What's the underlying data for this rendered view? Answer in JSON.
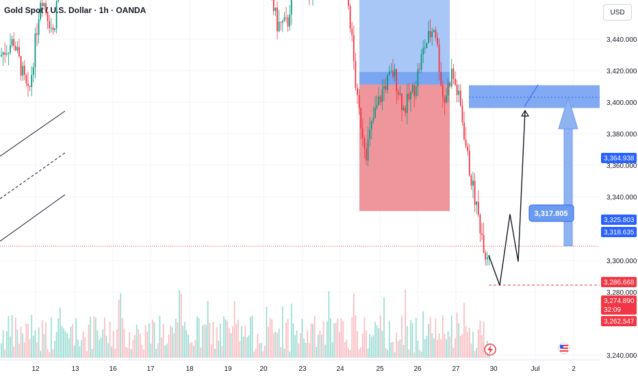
{
  "header": {
    "symbol_title": "Gold Spot / U.S. Dollar · 1h · OANDA",
    "currency": "USD"
  },
  "colors": {
    "up": "#089981",
    "down": "#f23645",
    "accent_blue": "#2962ff",
    "zone_blue": "#90b4f3",
    "zone_red": "#ef9a9a",
    "grid": "#f0f3fa",
    "text": "#131722"
  },
  "chart_data": {
    "type": "candlestick",
    "price_axis": {
      "ticks": [
        "3,440.000",
        "3,420.000",
        "3,400.000",
        "3,380.000",
        "3,360.000",
        "3,340.000",
        "3,300.000",
        "3,280.000",
        "3,240.000"
      ],
      "range": [
        3236,
        3458
      ]
    },
    "time_axis": {
      "ticks": [
        "12",
        "13",
        "16",
        "17",
        "18",
        "19",
        "20",
        "23",
        "24",
        "25",
        "26",
        "27",
        "30",
        "Jul",
        "2"
      ]
    },
    "price_labels": [
      {
        "text": "3,364.938",
        "value": 3364.938,
        "color": "#2962ff"
      },
      {
        "text": "3,325.803",
        "value": 3325.803,
        "color": "#2962ff"
      },
      {
        "text": "3,318.635",
        "value": 3318.635,
        "color": "#2962ff"
      },
      {
        "text": "3,286.668",
        "value": 3286.668,
        "color": "#f23645"
      },
      {
        "text": "3,274.890",
        "value": 3274.89,
        "color": "#f23645"
      },
      {
        "text": "32:09",
        "value": 3269.5,
        "color": "#f23645"
      },
      {
        "text": "3,262.547",
        "value": 3262.547,
        "color": "#f23645"
      }
    ],
    "annotation": {
      "text": "3,317.805",
      "value": 3317.805
    },
    "current_price": 3274.89,
    "target_low": 3262.547
  }
}
